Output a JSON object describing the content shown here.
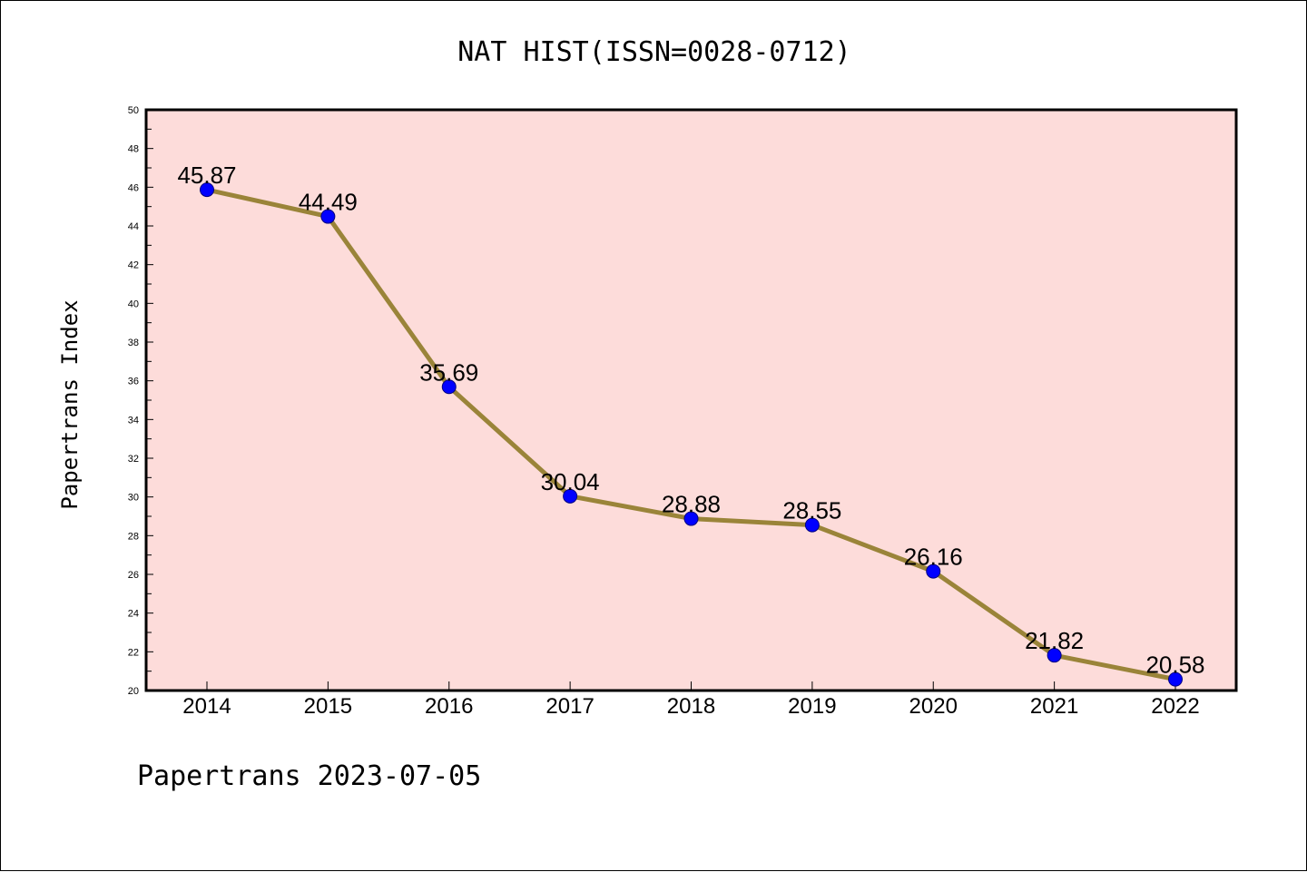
{
  "chart_data": {
    "type": "line",
    "title": "NAT HIST(ISSN=0028-0712)",
    "xlabel": "",
    "ylabel": "Papertrans Index",
    "categories": [
      "2014",
      "2015",
      "2016",
      "2017",
      "2018",
      "2019",
      "2020",
      "2021",
      "2022"
    ],
    "series": [
      {
        "values": [
          45.87,
          44.49,
          35.69,
          30.04,
          28.88,
          28.55,
          26.16,
          21.82,
          20.58
        ],
        "data_labels": [
          "45.87",
          "44.49",
          "35.69",
          "30.04",
          "28.88",
          "28.55",
          "26.16",
          "21.82",
          "20.58"
        ]
      }
    ],
    "ylim": [
      20,
      50
    ],
    "yticks": [
      "20",
      "22",
      "24",
      "26",
      "28",
      "30",
      "32",
      "34",
      "36",
      "38",
      "40",
      "42",
      "44",
      "46",
      "48",
      "50"
    ],
    "grid": false,
    "legend": "none",
    "colors": {
      "plot_background": "#FDDCDA",
      "line": "#9A8439",
      "marker": "#0000FF",
      "axes": "#000000"
    }
  },
  "footer": {
    "text": "Papertrans 2023-07-05"
  }
}
